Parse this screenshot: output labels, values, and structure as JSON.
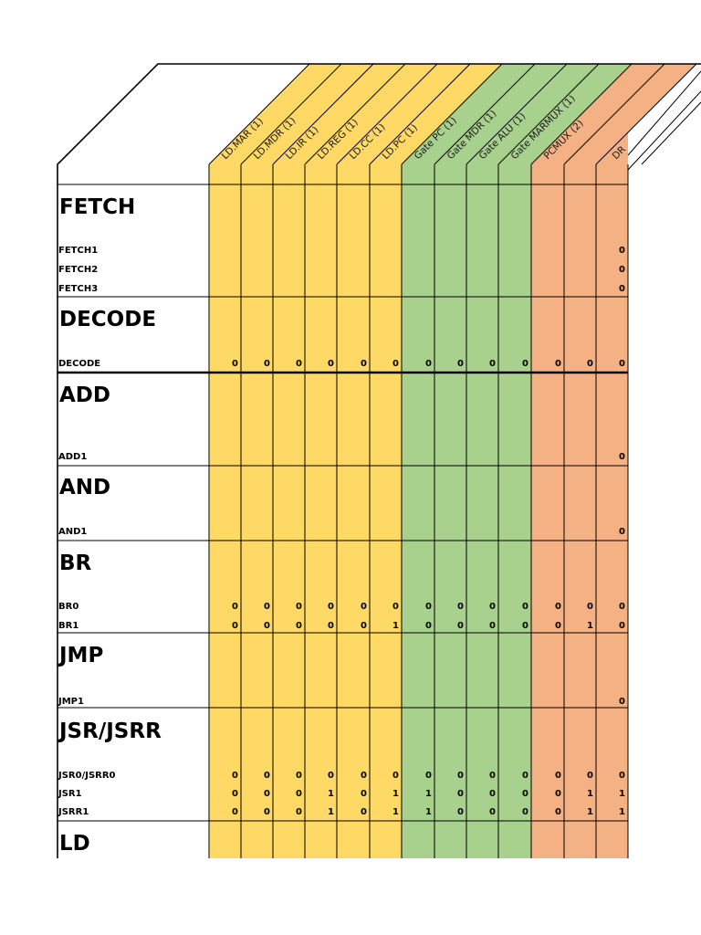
{
  "columns": [
    {
      "label": "LD.MAR (1)",
      "color": "#FFD966"
    },
    {
      "label": "LD.MDR (1)",
      "color": "#FFD966"
    },
    {
      "label": "LD.IR (1)",
      "color": "#FFD966"
    },
    {
      "label": "LD.REG (1)",
      "color": "#FFD966"
    },
    {
      "label": "LD.CC (1)",
      "color": "#FFD966"
    },
    {
      "label": "LD.PC (1)",
      "color": "#FFD966"
    },
    {
      "label": "Gate PC (1)",
      "color": "#A9D18E"
    },
    {
      "label": "Gate MDR (1)",
      "color": "#A9D18E"
    },
    {
      "label": "Gate ALU (1)",
      "color": "#A9D18E"
    },
    {
      "label": "Gate MARMUX (1)",
      "color": "#A9D18E"
    },
    {
      "label": "PCMUX (2)",
      "color": "#F4B183"
    },
    {
      "label": "",
      "color": "#F4B183"
    },
    {
      "label": "DR",
      "color": "#F4B183"
    }
  ],
  "sections": [
    {
      "title": "FETCH",
      "rows": [
        {
          "label": "FETCH1",
          "values": [
            "",
            "",
            "",
            "",
            "",
            "",
            "",
            "",
            "",
            "",
            "",
            "",
            "0"
          ]
        },
        {
          "label": "FETCH2",
          "values": [
            "",
            "",
            "",
            "",
            "",
            "",
            "",
            "",
            "",
            "",
            "",
            "",
            "0"
          ]
        },
        {
          "label": "FETCH3",
          "values": [
            "",
            "",
            "",
            "",
            "",
            "",
            "",
            "",
            "",
            "",
            "",
            "",
            "0"
          ]
        }
      ]
    },
    {
      "title": "DECODE",
      "rows": [
        {
          "label": "DECODE",
          "values": [
            "0",
            "0",
            "0",
            "0",
            "0",
            "0",
            "0",
            "0",
            "0",
            "0",
            "0",
            "0",
            "0"
          ]
        }
      ]
    },
    {
      "title": "ADD",
      "rows": [
        {
          "label": "ADD1",
          "values": [
            "",
            "",
            "",
            "",
            "",
            "",
            "",
            "",
            "",
            "",
            "",
            "",
            "0"
          ]
        }
      ]
    },
    {
      "title": "AND",
      "rows": [
        {
          "label": "AND1",
          "values": [
            "",
            "",
            "",
            "",
            "",
            "",
            "",
            "",
            "",
            "",
            "",
            "",
            "0"
          ]
        }
      ]
    },
    {
      "title": "BR",
      "rows": [
        {
          "label": "BR0",
          "values": [
            "0",
            "0",
            "0",
            "0",
            "0",
            "0",
            "0",
            "0",
            "0",
            "0",
            "0",
            "0",
            "0"
          ]
        },
        {
          "label": "BR1",
          "values": [
            "0",
            "0",
            "0",
            "0",
            "0",
            "1",
            "0",
            "0",
            "0",
            "0",
            "0",
            "1",
            "0"
          ]
        }
      ]
    },
    {
      "title": "JMP",
      "rows": [
        {
          "label": "JMP1",
          "values": [
            "",
            "",
            "",
            "",
            "",
            "",
            "",
            "",
            "",
            "",
            "",
            "",
            "0"
          ]
        }
      ]
    },
    {
      "title": "JSR/JSRR",
      "rows": [
        {
          "label": "JSR0/JSRR0",
          "values": [
            "0",
            "0",
            "0",
            "0",
            "0",
            "0",
            "0",
            "0",
            "0",
            "0",
            "0",
            "0",
            "0"
          ]
        },
        {
          "label": "JSR1",
          "values": [
            "0",
            "0",
            "0",
            "1",
            "0",
            "1",
            "1",
            "0",
            "0",
            "0",
            "0",
            "1",
            "1"
          ]
        },
        {
          "label": "JSRR1",
          "values": [
            "0",
            "0",
            "0",
            "1",
            "0",
            "1",
            "1",
            "0",
            "0",
            "0",
            "0",
            "1",
            "1"
          ]
        }
      ]
    },
    {
      "title": "LD",
      "rows": []
    }
  ]
}
